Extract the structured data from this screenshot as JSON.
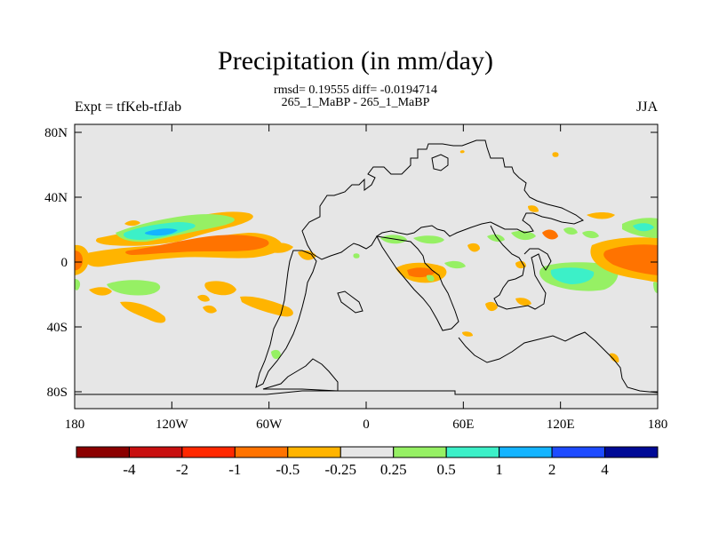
{
  "title": "Precipitation (in mm/day)",
  "stats_line1": "rmsd= 0.19555 diff= -0.0194714",
  "stats_line2": "265_1_MaBP - 265_1_MaBP",
  "left_label": "Expt = tfKeb-tfJab",
  "right_label": "JJA",
  "map": {
    "x_ticks": [
      "180",
      "120W",
      "60W",
      "0",
      "60E",
      "120E",
      "180"
    ],
    "y_ticks": [
      "80N",
      "40N",
      "0",
      "40S",
      "80S"
    ],
    "background_color": "#e6e6e6",
    "coastline_color": "#000000"
  },
  "colorbar": {
    "colors": [
      "#8b0000",
      "#c80f0f",
      "#ff2800",
      "#ff7300",
      "#ffb400",
      "#e6e6e6",
      "#96f064",
      "#3cf0c8",
      "#14b4ff",
      "#1e4bff",
      "#000a96"
    ],
    "labels": [
      "-4",
      "-2",
      "-1",
      "-0.5",
      "-0.25",
      "0.25",
      "0.5",
      "1",
      "2",
      "4"
    ]
  }
}
